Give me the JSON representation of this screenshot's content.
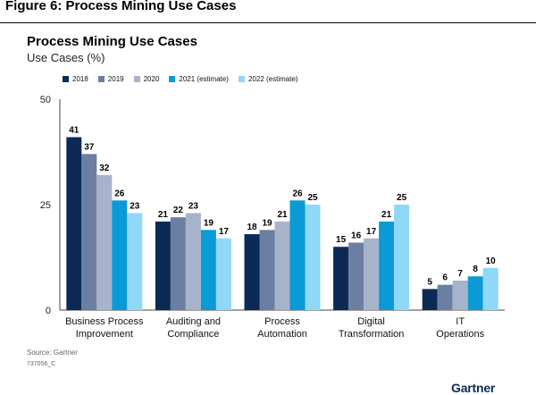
{
  "figure_title": "Figure 6: Process Mining Use Cases",
  "source": "Source: Gartner",
  "code": "737056_C",
  "logo": "Gartner",
  "chart_data": {
    "type": "bar",
    "title": "Process Mining Use Cases",
    "subtitle": "Use Cases (%)",
    "categories": [
      [
        "Business Process",
        "Improvement"
      ],
      [
        "Auditing and",
        "Compliance"
      ],
      [
        "Process",
        "Automation"
      ],
      [
        "Digital",
        "Transformation"
      ],
      [
        "IT",
        "Operations"
      ]
    ],
    "series": [
      {
        "name": "2018",
        "color": "#0c2a56",
        "values": [
          41,
          21,
          18,
          15,
          5
        ]
      },
      {
        "name": "2019",
        "color": "#6b7fa3",
        "values": [
          37,
          22,
          19,
          16,
          6
        ]
      },
      {
        "name": "2020",
        "color": "#a7b3cb",
        "values": [
          32,
          23,
          21,
          17,
          7
        ]
      },
      {
        "name": "2021 (estimate)",
        "color": "#0a9ad6",
        "values": [
          26,
          19,
          26,
          21,
          8
        ]
      },
      {
        "name": "2022 (estimate)",
        "color": "#8fd8f8",
        "values": [
          23,
          17,
          25,
          25,
          10
        ]
      }
    ],
    "ylim": [
      0,
      50
    ],
    "yticks": [
      0,
      25,
      50
    ],
    "grid": false,
    "legend_position": "top-left"
  }
}
